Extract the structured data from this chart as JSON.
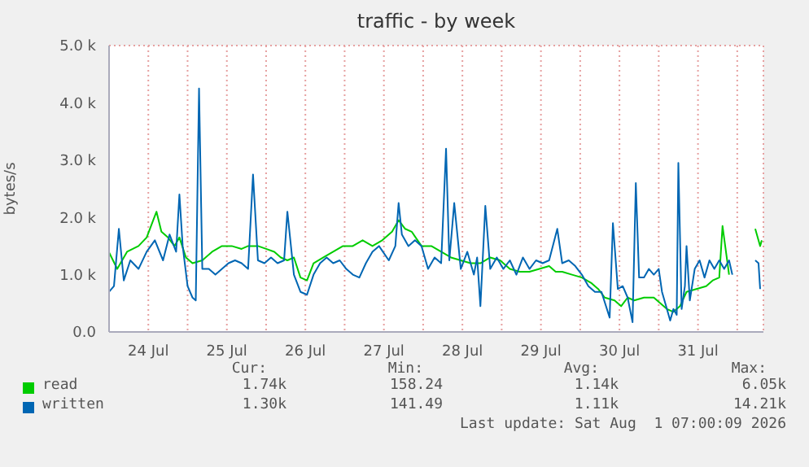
{
  "chart_data": {
    "type": "line",
    "title": "traffic - by week",
    "ylabel": "bytes/s",
    "xlim": [
      "2026-07-24T00:00",
      "2026-08-01T08:00"
    ],
    "xticks": [
      {
        "value": "2026-07-24T12:00",
        "label": "24 Jul"
      },
      {
        "value": "2026-07-25T00:00",
        "label": null
      },
      {
        "value": "2026-07-25T12:00",
        "label": "25 Jul"
      },
      {
        "value": "2026-07-26T00:00",
        "label": null
      },
      {
        "value": "2026-07-26T12:00",
        "label": "26 Jul"
      },
      {
        "value": "2026-07-27T00:00",
        "label": null
      },
      {
        "value": "2026-07-27T12:00",
        "label": "27 Jul"
      },
      {
        "value": "2026-07-28T00:00",
        "label": null
      },
      {
        "value": "2026-07-28T12:00",
        "label": "28 Jul"
      },
      {
        "value": "2026-07-29T00:00",
        "label": null
      },
      {
        "value": "2026-07-29T12:00",
        "label": "29 Jul"
      },
      {
        "value": "2026-07-30T00:00",
        "label": null
      },
      {
        "value": "2026-07-30T12:00",
        "label": "30 Jul"
      },
      {
        "value": "2026-07-31T00:00",
        "label": null
      },
      {
        "value": "2026-07-31T12:00",
        "label": "31 Jul"
      },
      {
        "value": "2026-08-01T00:00",
        "label": null
      }
    ],
    "ylim": [
      0,
      5000
    ],
    "yticks": [
      {
        "value": 0,
        "label": "0.0"
      },
      {
        "value": 1000,
        "label": "1.0 k"
      },
      {
        "value": 2000,
        "label": "2.0 k"
      },
      {
        "value": 3000,
        "label": "3.0 k"
      },
      {
        "value": 4000,
        "label": "4.0 k"
      },
      {
        "value": 5000,
        "label": "5.0 k"
      }
    ],
    "grid": true,
    "legend": "bottom",
    "marker": "none",
    "line_style": "solid",
    "series": [
      {
        "name": "read",
        "color": "#00cc00",
        "x": [
          "2026-07-24T00:00",
          "2026-07-24T02:30",
          "2026-07-24T05:30",
          "2026-07-24T09:00",
          "2026-07-24T11:30",
          "2026-07-24T13:30",
          "2026-07-24T14:30",
          "2026-07-24T16:00",
          "2026-07-24T18:00",
          "2026-07-24T20:00",
          "2026-07-24T21:30",
          "2026-07-24T23:30",
          "2026-07-25T01:30",
          "2026-07-25T04:30",
          "2026-07-25T07:30",
          "2026-07-25T10:30",
          "2026-07-25T13:30",
          "2026-07-25T16:30",
          "2026-07-25T18:30",
          "2026-07-25T21:30",
          "2026-07-26T00:00",
          "2026-07-26T02:30",
          "2026-07-26T04:30",
          "2026-07-26T06:30",
          "2026-07-26T08:30",
          "2026-07-26T10:30",
          "2026-07-26T12:30",
          "2026-07-26T14:30",
          "2026-07-26T17:30",
          "2026-07-26T20:30",
          "2026-07-26T23:30",
          "2026-07-27T02:30",
          "2026-07-27T05:30",
          "2026-07-27T08:30",
          "2026-07-27T11:30",
          "2026-07-27T14:30",
          "2026-07-27T16:30",
          "2026-07-27T18:30",
          "2026-07-27T20:30",
          "2026-07-27T23:30",
          "2026-07-28T02:30",
          "2026-07-28T05:30",
          "2026-07-28T08:30",
          "2026-07-28T11:30",
          "2026-07-28T14:30",
          "2026-07-28T17:30",
          "2026-07-28T20:30",
          "2026-07-28T23:30",
          "2026-07-29T02:30",
          "2026-07-29T05:30",
          "2026-07-29T08:30",
          "2026-07-29T11:30",
          "2026-07-29T14:30",
          "2026-07-29T16:30",
          "2026-07-29T18:30",
          "2026-07-29T21:30",
          "2026-07-30T00:30",
          "2026-07-30T03:30",
          "2026-07-30T05:30",
          "2026-07-30T07:30",
          "2026-07-30T10:30",
          "2026-07-30T12:30",
          "2026-07-30T14:30",
          "2026-07-30T16:30",
          "2026-07-30T19:30",
          "2026-07-30T22:30",
          "2026-07-31T00:30",
          "2026-07-31T02:30",
          "2026-07-31T04:30",
          "2026-07-31T06:30",
          "2026-07-31T08:30",
          "2026-07-31T11:30",
          "2026-07-31T14:30",
          "2026-07-31T16:30",
          "2026-07-31T18:30",
          "2026-07-31T19:30",
          "2026-07-31T21:30",
          "2026-07-31T23:30",
          "2026-08-01T05:30",
          "2026-08-01T07:00",
          "2026-08-01T07:30"
        ],
        "values": [
          1390,
          1100,
          1400,
          1500,
          1650,
          1950,
          2100,
          1750,
          1650,
          1500,
          1650,
          1300,
          1200,
          1250,
          1400,
          1500,
          1500,
          1450,
          1500,
          1500,
          1450,
          1400,
          1300,
          1250,
          1300,
          950,
          900,
          1200,
          1300,
          1400,
          1500,
          1500,
          1600,
          1500,
          1600,
          1750,
          1950,
          1800,
          1750,
          1500,
          1500,
          1400,
          1300,
          1250,
          1200,
          1200,
          1300,
          1250,
          1100,
          1050,
          1050,
          1100,
          1150,
          1050,
          1050,
          1000,
          950,
          850,
          750,
          600,
          550,
          450,
          600,
          550,
          600,
          600,
          500,
          400,
          350,
          450,
          700,
          750,
          800,
          900,
          950,
          1850,
          1000,
          null,
          1800,
          1500,
          1600
        ]
      },
      {
        "name": "written",
        "color": "#0066b3",
        "x": [
          "2026-07-24T00:00",
          "2026-07-24T01:30",
          "2026-07-24T03:00",
          "2026-07-24T04:30",
          "2026-07-24T06:30",
          "2026-07-24T09:00",
          "2026-07-24T11:30",
          "2026-07-24T14:00",
          "2026-07-24T16:30",
          "2026-07-24T18:30",
          "2026-07-24T20:30",
          "2026-07-24T21:30",
          "2026-07-24T22:30",
          "2026-07-25T00:00",
          "2026-07-25T01:30",
          "2026-07-25T02:30",
          "2026-07-25T03:30",
          "2026-07-25T04:30",
          "2026-07-25T06:30",
          "2026-07-25T08:30",
          "2026-07-25T10:30",
          "2026-07-25T12:30",
          "2026-07-25T14:30",
          "2026-07-25T16:30",
          "2026-07-25T18:30",
          "2026-07-25T20:00",
          "2026-07-25T21:30",
          "2026-07-25T23:30",
          "2026-07-26T01:30",
          "2026-07-26T03:30",
          "2026-07-26T05:30",
          "2026-07-26T06:30",
          "2026-07-26T08:30",
          "2026-07-26T10:30",
          "2026-07-26T12:30",
          "2026-07-26T14:30",
          "2026-07-26T16:30",
          "2026-07-26T18:30",
          "2026-07-26T20:30",
          "2026-07-26T22:30",
          "2026-07-27T00:30",
          "2026-07-27T02:30",
          "2026-07-27T04:30",
          "2026-07-27T06:30",
          "2026-07-27T08:30",
          "2026-07-27T10:30",
          "2026-07-27T13:30",
          "2026-07-27T15:30",
          "2026-07-27T16:30",
          "2026-07-27T17:30",
          "2026-07-27T19:30",
          "2026-07-27T21:30",
          "2026-07-27T23:30",
          "2026-07-28T01:30",
          "2026-07-28T03:30",
          "2026-07-28T05:30",
          "2026-07-28T07:00",
          "2026-07-28T08:00",
          "2026-07-28T09:30",
          "2026-07-28T11:30",
          "2026-07-28T13:30",
          "2026-07-28T15:30",
          "2026-07-28T16:30",
          "2026-07-28T17:30",
          "2026-07-28T19:00",
          "2026-07-28T20:30",
          "2026-07-28T22:30",
          "2026-07-29T00:30",
          "2026-07-29T02:30",
          "2026-07-29T04:30",
          "2026-07-29T06:30",
          "2026-07-29T08:30",
          "2026-07-29T10:30",
          "2026-07-29T12:30",
          "2026-07-29T14:30",
          "2026-07-29T17:00",
          "2026-07-29T18:30",
          "2026-07-29T20:30",
          "2026-07-29T22:30",
          "2026-07-30T00:30",
          "2026-07-30T02:30",
          "2026-07-30T04:30",
          "2026-07-30T06:30",
          "2026-07-30T09:00",
          "2026-07-30T10:00",
          "2026-07-30T11:30",
          "2026-07-30T13:00",
          "2026-07-30T14:30",
          "2026-07-30T16:00",
          "2026-07-30T17:00",
          "2026-07-30T18:00",
          "2026-07-30T19:30",
          "2026-07-30T21:00",
          "2026-07-30T22:30",
          "2026-07-31T00:00",
          "2026-07-31T01:00",
          "2026-07-31T02:30",
          "2026-07-31T03:30",
          "2026-07-31T04:30",
          "2026-07-31T05:30",
          "2026-07-31T06:00",
          "2026-07-31T07:00",
          "2026-07-31T08:00",
          "2026-07-31T08:30",
          "2026-07-31T09:30",
          "2026-07-31T11:00",
          "2026-07-31T12:30",
          "2026-07-31T14:00",
          "2026-07-31T15:30",
          "2026-07-31T17:00",
          "2026-07-31T18:30",
          "2026-07-31T20:00",
          "2026-07-31T21:30",
          "2026-07-31T22:30",
          "2026-07-31T23:30",
          "2026-08-01T05:30",
          "2026-08-01T06:30",
          "2026-08-01T07:00"
        ],
        "values": [
          700,
          800,
          1800,
          900,
          1250,
          1100,
          1400,
          1600,
          1250,
          1700,
          1400,
          2400,
          1500,
          800,
          600,
          550,
          4250,
          1100,
          1100,
          1000,
          1100,
          1200,
          1250,
          1200,
          1100,
          2750,
          1250,
          1200,
          1300,
          1200,
          1250,
          2100,
          1000,
          700,
          650,
          1000,
          1200,
          1300,
          1200,
          1250,
          1100,
          1000,
          950,
          1200,
          1400,
          1500,
          1250,
          1500,
          2250,
          1700,
          1500,
          1600,
          1500,
          1100,
          1300,
          1200,
          3200,
          1250,
          2250,
          1100,
          1400,
          1000,
          1300,
          450,
          2200,
          1100,
          1300,
          1100,
          1250,
          1000,
          1300,
          1100,
          1250,
          1200,
          1250,
          1800,
          1200,
          1250,
          1150,
          1000,
          800,
          700,
          700,
          250,
          1900,
          750,
          800,
          600,
          170,
          2600,
          950,
          950,
          1100,
          1000,
          1100,
          700,
          400,
          200,
          400,
          300,
          2950,
          400,
          800,
          1500,
          550,
          1100,
          1250,
          950,
          1250,
          1100,
          1250,
          1100,
          1250,
          1000,
          null,
          1250,
          1200,
          750
        ]
      }
    ],
    "annotations": [
      "Cur:",
      "Min:",
      "Avg:",
      "Max:",
      "1.74k",
      "158.24",
      "1.14k",
      "6.05k",
      "1.30k",
      "141.49",
      "1.11k",
      "14.21k",
      "Last update: Sat Aug  1 07:00:09 2026"
    ]
  }
}
